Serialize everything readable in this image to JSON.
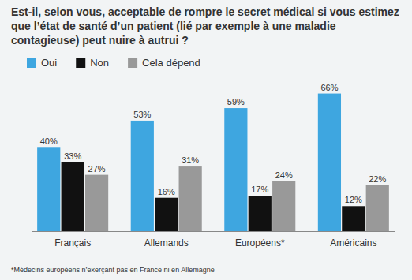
{
  "chart_data": {
    "type": "bar",
    "title": "Est-il, selon vous, acceptable de rompre le secret médical si vous estimez que l’état de santé d’un patient (lié par exemple à une maladie contagieuse) peut nuire à autrui ?",
    "categories": [
      "Français",
      "Allemands",
      "Européens*",
      "Américains"
    ],
    "series": [
      {
        "name": "Oui",
        "color": "#3ea6e0",
        "values": [
          40,
          53,
          59,
          66
        ],
        "value_labels": [
          "40%",
          "53%",
          "59%",
          "66%"
        ]
      },
      {
        "name": "Non",
        "color": "#111111",
        "values": [
          33,
          16,
          17,
          12
        ],
        "value_labels": [
          "33%",
          "16%",
          "17%",
          "12%"
        ]
      },
      {
        "name": "Cela dépend",
        "color": "#999999",
        "values": [
          27,
          31,
          24,
          22
        ],
        "value_labels": [
          "27%",
          "31%",
          "24%",
          "22%"
        ]
      }
    ],
    "ylim": [
      0,
      70
    ],
    "data_labels": true,
    "tick_labels": "x",
    "legend": "top-left",
    "annotations": [
      "*Médecins européens n’exerçant pas en France ni en Allemagne"
    ]
  }
}
